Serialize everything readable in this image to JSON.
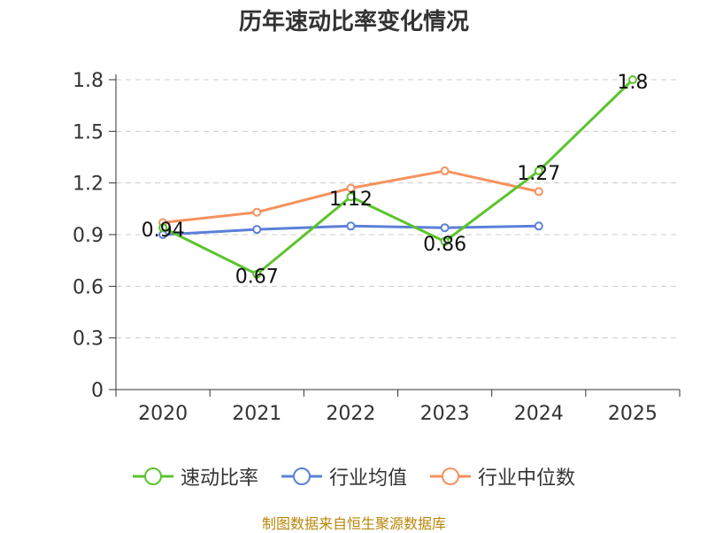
{
  "chart_data": {
    "type": "line",
    "title": "历年速动比率变化情况",
    "categories": [
      "2020",
      "2021",
      "2022",
      "2023",
      "2024",
      "2025"
    ],
    "y_ticks": [
      "0",
      "0.3",
      "0.6",
      "0.9",
      "1.2",
      "1.5",
      "1.8"
    ],
    "ylim": [
      0,
      1.8
    ],
    "grid": true,
    "legend_position": "bottom",
    "series": [
      {
        "name": "速动比率",
        "color": "#5cc32e",
        "values": [
          0.94,
          0.67,
          1.12,
          0.86,
          1.27,
          1.8
        ],
        "labels": [
          "0.94",
          "0.67",
          "1.12",
          "0.86",
          "1.27",
          "1.8"
        ]
      },
      {
        "name": "行业均值",
        "color": "#5b80d8",
        "values": [
          0.9,
          0.93,
          0.95,
          0.94,
          0.95,
          null
        ]
      },
      {
        "name": "行业中位数",
        "color": "#f5925e",
        "values": [
          0.97,
          1.03,
          1.17,
          1.27,
          1.15,
          null
        ]
      }
    ],
    "source": "制图数据来自恒生聚源数据库"
  }
}
